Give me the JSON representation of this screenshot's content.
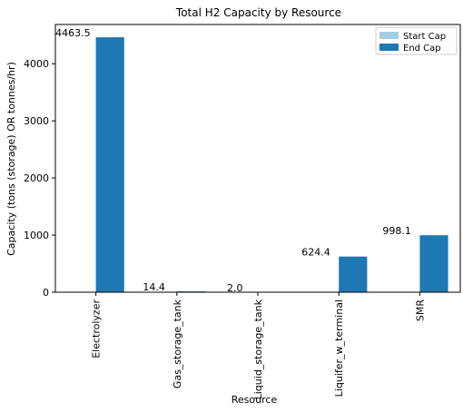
{
  "chart_data": {
    "type": "bar",
    "title": "Total H2 Capacity by Resource",
    "xlabel": "Resource",
    "ylabel": "Capacity (tons (storage) OR tonnes/hr)",
    "categories": [
      "Electrolyzer",
      "Gas_storage_tank",
      "Liquid_storage_tank",
      "Liquifer_w_terminal",
      "SMR"
    ],
    "series": [
      {
        "name": "Start Cap",
        "color": "#a6cee3",
        "values": [
          0,
          0,
          0,
          0,
          0
        ]
      },
      {
        "name": "End Cap",
        "color": "#1f78b4",
        "values": [
          4463.5,
          14.4,
          2.0,
          624.4,
          998.1
        ]
      }
    ],
    "data_labels": [
      "4463.5",
      "14.4",
      "2.0",
      "624.4",
      "998.1"
    ],
    "yticks": [
      0,
      1000,
      2000,
      3000,
      4000
    ],
    "ylim": [
      0,
      4687
    ],
    "legend_position": "top-right",
    "grid": false
  }
}
